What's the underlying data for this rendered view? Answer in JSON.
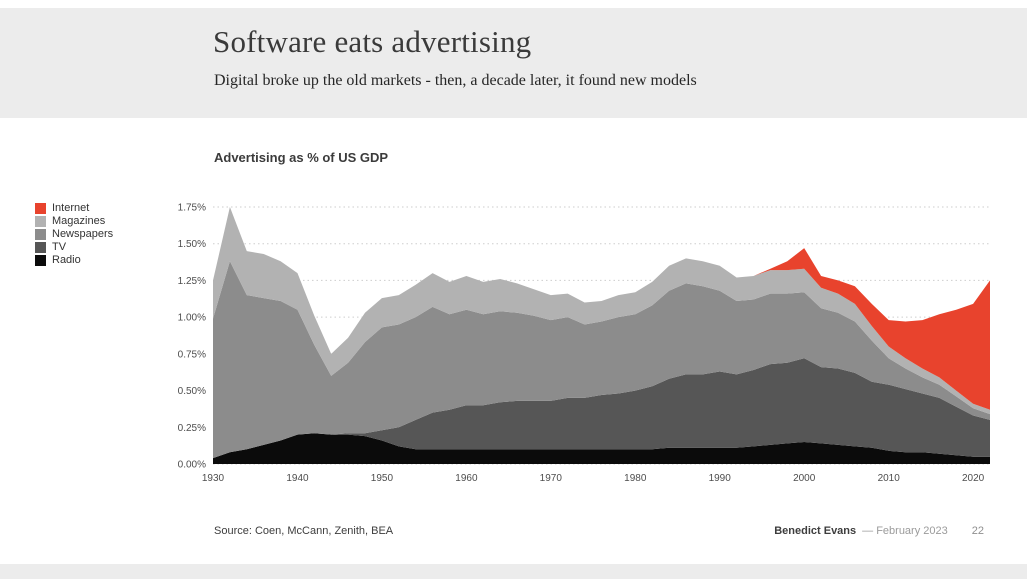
{
  "slide": {
    "title": "Software eats advertising",
    "subtitle": "Digital broke up the old markets - then, a decade later, it found new models",
    "chart_heading": "Advertising as % of US GDP",
    "footer": {
      "source": "Source: Coen, McCann, Zenith, BEA",
      "author": "Benedict Evans",
      "date": "—  February 2023",
      "page": "22"
    }
  },
  "legend": {
    "position": "left",
    "items": [
      {
        "label": "Internet",
        "color": "#e8432d"
      },
      {
        "label": "Magazines",
        "color": "#b2b2b2"
      },
      {
        "label": "Newspapers",
        "color": "#8c8c8c"
      },
      {
        "label": "TV",
        "color": "#565656"
      },
      {
        "label": "Radio",
        "color": "#0b0b0b"
      }
    ]
  },
  "chart_data": {
    "type": "area",
    "stacked": true,
    "stack_order": "bottom-to-top",
    "title": "Advertising as % of US GDP",
    "xlabel": "",
    "ylabel": "Advertising as % of US GDP",
    "grid": true,
    "x_range": [
      1930,
      2022
    ],
    "ylim": [
      0,
      1.75
    ],
    "yticks": [
      0,
      0.25,
      0.5,
      0.75,
      1.0,
      1.25,
      1.5,
      1.75
    ],
    "ytick_labels": [
      "0.00%",
      "0.25%",
      "0.50%",
      "0.75%",
      "1.00%",
      "1.25%",
      "1.50%",
      "1.75%"
    ],
    "xticks": [
      1930,
      1940,
      1950,
      1960,
      1970,
      1980,
      1990,
      2000,
      2010,
      2020
    ],
    "x": [
      1930,
      1932,
      1934,
      1936,
      1938,
      1940,
      1942,
      1944,
      1946,
      1948,
      1950,
      1952,
      1954,
      1956,
      1958,
      1960,
      1962,
      1964,
      1966,
      1968,
      1970,
      1972,
      1974,
      1976,
      1978,
      1980,
      1982,
      1984,
      1986,
      1988,
      1990,
      1992,
      1994,
      1996,
      1998,
      2000,
      2002,
      2004,
      2006,
      2008,
      2010,
      2012,
      2014,
      2016,
      2018,
      2020,
      2022
    ],
    "series": [
      {
        "name": "Radio",
        "color": "#0b0b0b",
        "values": [
          0.04,
          0.08,
          0.1,
          0.13,
          0.16,
          0.2,
          0.21,
          0.2,
          0.2,
          0.19,
          0.16,
          0.12,
          0.1,
          0.1,
          0.1,
          0.1,
          0.1,
          0.1,
          0.1,
          0.1,
          0.1,
          0.1,
          0.1,
          0.1,
          0.1,
          0.1,
          0.1,
          0.11,
          0.11,
          0.11,
          0.11,
          0.11,
          0.12,
          0.13,
          0.14,
          0.15,
          0.14,
          0.13,
          0.12,
          0.11,
          0.09,
          0.08,
          0.08,
          0.07,
          0.06,
          0.05,
          0.05
        ]
      },
      {
        "name": "TV",
        "color": "#565656",
        "values": [
          0,
          0,
          0,
          0,
          0,
          0,
          0,
          0,
          0.01,
          0.02,
          0.07,
          0.13,
          0.2,
          0.25,
          0.27,
          0.3,
          0.3,
          0.32,
          0.33,
          0.33,
          0.33,
          0.35,
          0.35,
          0.37,
          0.38,
          0.4,
          0.43,
          0.47,
          0.5,
          0.5,
          0.52,
          0.5,
          0.52,
          0.55,
          0.55,
          0.57,
          0.52,
          0.52,
          0.5,
          0.45,
          0.45,
          0.43,
          0.4,
          0.38,
          0.33,
          0.28,
          0.25
        ]
      },
      {
        "name": "Newspapers",
        "color": "#8c8c8c",
        "values": [
          0.95,
          1.3,
          1.05,
          1.0,
          0.95,
          0.85,
          0.6,
          0.4,
          0.48,
          0.62,
          0.7,
          0.7,
          0.7,
          0.72,
          0.65,
          0.65,
          0.62,
          0.62,
          0.6,
          0.58,
          0.55,
          0.55,
          0.5,
          0.5,
          0.52,
          0.52,
          0.55,
          0.6,
          0.62,
          0.6,
          0.55,
          0.5,
          0.48,
          0.48,
          0.47,
          0.45,
          0.4,
          0.38,
          0.35,
          0.28,
          0.18,
          0.14,
          0.11,
          0.09,
          0.07,
          0.05,
          0.04
        ]
      },
      {
        "name": "Magazines",
        "color": "#b2b2b2",
        "values": [
          0.26,
          0.37,
          0.3,
          0.3,
          0.27,
          0.25,
          0.2,
          0.15,
          0.17,
          0.2,
          0.2,
          0.2,
          0.22,
          0.23,
          0.22,
          0.23,
          0.22,
          0.22,
          0.2,
          0.18,
          0.17,
          0.16,
          0.15,
          0.14,
          0.15,
          0.15,
          0.16,
          0.17,
          0.17,
          0.17,
          0.17,
          0.16,
          0.16,
          0.16,
          0.16,
          0.16,
          0.14,
          0.13,
          0.12,
          0.1,
          0.08,
          0.07,
          0.06,
          0.05,
          0.04,
          0.03,
          0.03
        ]
      },
      {
        "name": "Internet",
        "color": "#e8432d",
        "values": [
          0,
          0,
          0,
          0,
          0,
          0,
          0,
          0,
          0,
          0,
          0,
          0,
          0,
          0,
          0,
          0,
          0,
          0,
          0,
          0,
          0,
          0,
          0,
          0,
          0,
          0,
          0,
          0,
          0,
          0,
          0,
          0,
          0,
          0.01,
          0.06,
          0.14,
          0.08,
          0.09,
          0.12,
          0.15,
          0.18,
          0.25,
          0.33,
          0.43,
          0.55,
          0.68,
          0.88
        ]
      }
    ]
  },
  "colors": {
    "header_band": "#ececec",
    "grid": "#cdcdcd",
    "text_primary": "#3a3a3a",
    "text_muted": "#9b9b9b"
  }
}
